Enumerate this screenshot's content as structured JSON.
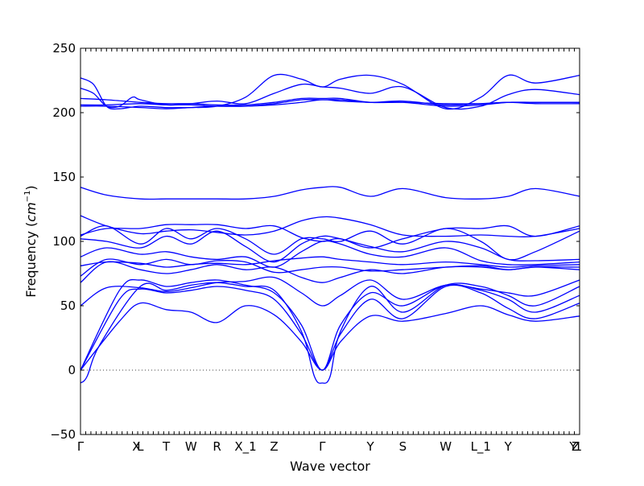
{
  "chart_data": {
    "type": "line",
    "title": "",
    "xlabel": "Wave vector",
    "ylabel": "Frequency ($cm^{-1}$)",
    "ylabel_text": "Frequency (",
    "ylabel_math": "cm",
    "ylabel_sup": "−1",
    "ylabel_close": ")",
    "ylim": [
      -50,
      250
    ],
    "yticks": [
      -50,
      0,
      50,
      100,
      150,
      200,
      250
    ],
    "ytick_labels": [
      "−50",
      "0",
      "50",
      "100",
      "150",
      "200",
      "250"
    ],
    "xlim": [
      0,
      3.84
    ],
    "xticks": [
      {
        "label": "Γ",
        "x": 0.0
      },
      {
        "label": "X",
        "x": 0.43
      },
      {
        "label": "L",
        "x": 0.46
      },
      {
        "label": "T",
        "x": 0.66
      },
      {
        "label": "W",
        "x": 0.85
      },
      {
        "label": "R",
        "x": 1.05
      },
      {
        "label": "X_1",
        "x": 1.27
      },
      {
        "label": "Z",
        "x": 1.49
      },
      {
        "label": "Γ",
        "x": 1.86
      },
      {
        "label": "Y",
        "x": 2.23
      },
      {
        "label": "S",
        "x": 2.48
      },
      {
        "label": "W",
        "x": 2.81
      },
      {
        "label": "L_1",
        "x": 3.08
      },
      {
        "label": "Y",
        "x": 3.29
      },
      {
        "label": "Y",
        "x": 3.79
      },
      {
        "label": "Z",
        "x": 3.81
      },
      {
        "label": "1",
        "x": 3.83
      }
    ],
    "zero_line": true,
    "grid": false,
    "series_color": "#0000ff",
    "series": [
      {
        "x": [
          0,
          0.3,
          0.46,
          0.66,
          0.85,
          1.05,
          1.27,
          1.49,
          1.7,
          1.86,
          2.0,
          2.23,
          2.48,
          2.81,
          3.08,
          3.29,
          3.5,
          3.84
        ],
        "y": [
          0,
          38,
          52,
          47,
          45,
          37,
          50,
          43,
          22,
          0,
          22,
          42,
          38,
          44,
          50,
          43,
          38,
          42
        ]
      },
      {
        "x": [
          0,
          0.3,
          0.46,
          0.66,
          0.85,
          1.05,
          1.27,
          1.49,
          1.7,
          1.86,
          2.0,
          2.23,
          2.48,
          2.81,
          3.08,
          3.29,
          3.5,
          3.84
        ],
        "y": [
          0,
          55,
          63,
          60,
          62,
          65,
          62,
          55,
          28,
          0,
          28,
          55,
          40,
          65,
          60,
          48,
          40,
          52
        ]
      },
      {
        "x": [
          0,
          0.3,
          0.46,
          0.66,
          0.85,
          1.05,
          1.27,
          1.49,
          1.7,
          1.86,
          2.0,
          2.23,
          2.48,
          2.81,
          3.08,
          3.29,
          3.5,
          3.84
        ],
        "y": [
          0,
          62,
          70,
          65,
          68,
          70,
          66,
          60,
          35,
          0,
          35,
          60,
          50,
          66,
          62,
          55,
          45,
          58
        ]
      },
      {
        "x": [
          0,
          0.05,
          0.15,
          0.46,
          0.66,
          0.85,
          1.05,
          1.27,
          1.49,
          1.7,
          1.8,
          1.86,
          1.92,
          2.0,
          2.23,
          2.48,
          2.81,
          3.08,
          3.29,
          3.5,
          3.84
        ],
        "y": [
          -10,
          -5,
          20,
          65,
          62,
          66,
          68,
          65,
          62,
          30,
          -5,
          -10,
          -5,
          30,
          65,
          45,
          66,
          65,
          58,
          50,
          65
        ]
      },
      {
        "x": [
          0,
          0.2,
          0.46,
          0.66,
          0.85,
          1.05,
          1.27,
          1.49,
          1.7,
          1.86,
          2.0,
          2.23,
          2.48,
          2.81,
          3.08,
          3.29,
          3.5,
          3.84
        ],
        "y": [
          50,
          64,
          64,
          61,
          64,
          68,
          69,
          72,
          60,
          50,
          58,
          70,
          55,
          66,
          63,
          60,
          58,
          70
        ]
      },
      {
        "x": [
          0,
          0.2,
          0.46,
          0.66,
          0.85,
          1.05,
          1.27,
          1.49,
          1.7,
          1.86,
          2.0,
          2.23,
          2.48,
          2.81,
          3.08,
          3.29,
          3.5,
          3.84
        ],
        "y": [
          68,
          84,
          78,
          75,
          78,
          82,
          78,
          80,
          72,
          68,
          72,
          78,
          75,
          80,
          80,
          78,
          80,
          80
        ]
      },
      {
        "x": [
          0,
          0.2,
          0.46,
          0.66,
          0.85,
          1.05,
          1.27,
          1.49,
          1.7,
          1.86,
          2.0,
          2.23,
          2.48,
          2.81,
          3.08,
          3.29,
          3.5,
          3.84
        ],
        "y": [
          73,
          86,
          82,
          86,
          82,
          85,
          84,
          76,
          78,
          80,
          80,
          77,
          78,
          80,
          81,
          78,
          80,
          78
        ]
      },
      {
        "x": [
          0,
          0.2,
          0.46,
          0.66,
          0.85,
          1.05,
          1.27,
          1.49,
          1.7,
          1.86,
          2.0,
          2.23,
          2.48,
          2.81,
          3.08,
          3.29,
          3.5,
          3.84
        ],
        "y": [
          81,
          84,
          83,
          80,
          82,
          83,
          82,
          85,
          87,
          88,
          86,
          84,
          82,
          84,
          82,
          80,
          81,
          82
        ]
      },
      {
        "x": [
          0,
          0.2,
          0.46,
          0.66,
          0.85,
          1.05,
          1.27,
          1.49,
          1.7,
          1.86,
          2.0,
          2.23,
          2.48,
          2.81,
          3.08,
          3.29,
          3.5,
          3.84
        ],
        "y": [
          88,
          95,
          90,
          92,
          88,
          86,
          88,
          80,
          92,
          100,
          98,
          90,
          88,
          95,
          85,
          82,
          82,
          84
        ]
      },
      {
        "x": [
          0,
          0.2,
          0.46,
          0.66,
          0.85,
          1.05,
          1.27,
          1.49,
          1.7,
          1.86,
          2.0,
          2.23,
          2.48,
          2.81,
          3.08,
          3.29,
          3.5,
          3.84
        ],
        "y": [
          102,
          100,
          95,
          104,
          98,
          108,
          96,
          84,
          98,
          104,
          102,
          96,
          92,
          100,
          95,
          86,
          85,
          86
        ]
      },
      {
        "x": [
          0,
          0.2,
          0.46,
          0.66,
          0.85,
          1.05,
          1.27,
          1.49,
          1.7,
          1.86,
          2.0,
          2.23,
          2.48,
          2.81,
          3.08,
          3.29,
          3.5,
          3.84
        ],
        "y": [
          104,
          112,
          98,
          110,
          102,
          110,
          102,
          90,
          102,
          102,
          100,
          108,
          98,
          110,
          100,
          86,
          92,
          108
        ]
      },
      {
        "x": [
          0,
          0.2,
          0.46,
          0.66,
          0.85,
          1.05,
          1.27,
          1.49,
          1.7,
          1.86,
          2.0,
          2.23,
          2.48,
          2.81,
          3.08,
          3.29,
          3.5,
          3.84
        ],
        "y": [
          105,
          110,
          110,
          113,
          113,
          113,
          110,
          112,
          103,
          100,
          102,
          95,
          102,
          110,
          110,
          112,
          104,
          112
        ]
      },
      {
        "x": [
          0,
          0.2,
          0.46,
          0.66,
          0.85,
          1.05,
          1.27,
          1.49,
          1.7,
          1.86,
          2.0,
          2.23,
          2.48,
          2.81,
          3.08,
          3.29,
          3.5,
          3.84
        ],
        "y": [
          120,
          112,
          106,
          108,
          109,
          107,
          105,
          108,
          116,
          119,
          118,
          113,
          105,
          104,
          105,
          104,
          104,
          110
        ]
      },
      {
        "x": [
          0,
          0.2,
          0.46,
          0.66,
          0.85,
          1.05,
          1.27,
          1.49,
          1.7,
          1.86,
          2.0,
          2.23,
          2.48,
          2.81,
          3.08,
          3.29,
          3.5,
          3.84
        ],
        "y": [
          142,
          136,
          133,
          133,
          133,
          133,
          133,
          135,
          140,
          142,
          142,
          135,
          141,
          134,
          133,
          135,
          141,
          135
        ]
      },
      {
        "x": [
          0,
          0.2,
          0.46,
          0.66,
          0.85,
          1.05,
          1.27,
          1.49,
          1.7,
          1.86,
          2.0,
          2.23,
          2.48,
          2.81,
          3.08,
          3.29,
          3.5,
          3.84
        ],
        "y": [
          205,
          205,
          204,
          203,
          204,
          205,
          205,
          206,
          208,
          210,
          209,
          208,
          208,
          205,
          206,
          208,
          208,
          208
        ]
      },
      {
        "x": [
          0,
          0.2,
          0.46,
          0.66,
          0.85,
          1.05,
          1.27,
          1.49,
          1.7,
          1.86,
          2.0,
          2.23,
          2.48,
          2.81,
          3.08,
          3.29,
          3.5,
          3.84
        ],
        "y": [
          206,
          206,
          207,
          206,
          206,
          205,
          205,
          207,
          210,
          210,
          210,
          208,
          209,
          206,
          207,
          208,
          207,
          207
        ]
      },
      {
        "x": [
          0,
          0.2,
          0.46,
          0.66,
          0.85,
          1.05,
          1.27,
          1.49,
          1.7,
          1.86,
          2.0,
          2.23,
          2.48,
          2.81,
          3.08,
          3.29,
          3.5,
          3.84
        ],
        "y": [
          211,
          210,
          208,
          207,
          207,
          206,
          206,
          208,
          211,
          211,
          211,
          208,
          208,
          207,
          207,
          208,
          208,
          208
        ]
      },
      {
        "x": [
          0,
          0.1,
          0.2,
          0.3,
          0.4,
          0.46,
          0.66,
          0.85,
          1.05,
          1.27,
          1.49,
          1.7,
          1.86,
          2.0,
          2.23,
          2.48,
          2.81,
          3.08,
          3.29,
          3.5,
          3.84
        ],
        "y": [
          219,
          215,
          205,
          205,
          212,
          210,
          206,
          207,
          209,
          207,
          215,
          222,
          220,
          219,
          215,
          220,
          204,
          205,
          214,
          218,
          214
        ]
      },
      {
        "x": [
          0,
          0.1,
          0.2,
          0.3,
          0.46,
          0.66,
          0.85,
          1.05,
          1.27,
          1.49,
          1.7,
          1.86,
          2.0,
          2.23,
          2.48,
          2.81,
          3.08,
          3.29,
          3.5,
          3.84
        ],
        "y": [
          227,
          222,
          205,
          203,
          205,
          204,
          204,
          205,
          212,
          229,
          226,
          220,
          226,
          229,
          222,
          203,
          212,
          229,
          223,
          229
        ]
      }
    ]
  }
}
